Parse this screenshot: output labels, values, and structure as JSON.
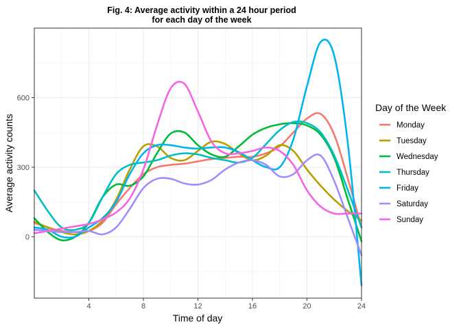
{
  "chart_data": {
    "type": "line",
    "title_line1": "Fig. 4: Average activity within a 24 hour period",
    "title_line2": "for each day of the week",
    "xlabel": "Time of day",
    "ylabel": "Average activity counts",
    "xlim": [
      0,
      24
    ],
    "ylim": [
      -265,
      900
    ],
    "x_ticks": [
      4,
      8,
      12,
      16,
      20,
      24
    ],
    "y_ticks": [
      0,
      300,
      600
    ],
    "grid": true,
    "legend_title": "Day of the Week",
    "legend_position": "right",
    "series": [
      {
        "name": "Monday",
        "color": "#F8766D",
        "x": [
          0,
          1,
          2,
          3,
          4,
          5,
          6,
          7,
          8,
          9,
          10,
          11,
          12,
          13,
          14,
          15,
          16,
          17,
          18,
          19,
          20,
          21,
          22,
          23,
          24
        ],
        "y": [
          60,
          40,
          25,
          20,
          25,
          60,
          140,
          210,
          270,
          300,
          310,
          315,
          325,
          335,
          340,
          345,
          345,
          360,
          390,
          450,
          510,
          530,
          440,
          250,
          40
        ]
      },
      {
        "name": "Tuesday",
        "color": "#B79F00",
        "x": [
          0,
          1,
          2,
          3,
          4,
          5,
          6,
          7,
          8,
          9,
          10,
          11,
          12,
          13,
          14,
          15,
          16,
          17,
          18,
          19,
          20,
          21,
          22,
          23,
          24
        ],
        "y": [
          65,
          40,
          20,
          10,
          25,
          70,
          160,
          290,
          390,
          390,
          340,
          330,
          370,
          410,
          400,
          360,
          330,
          350,
          395,
          370,
          290,
          220,
          160,
          110,
          70
        ]
      },
      {
        "name": "Wednesday",
        "color": "#00BA38",
        "x": [
          0,
          1,
          2,
          3,
          4,
          5,
          6,
          7,
          8,
          9,
          10,
          11,
          12,
          13,
          14,
          15,
          16,
          17,
          18,
          19,
          20,
          21,
          22,
          23,
          24
        ],
        "y": [
          80,
          20,
          -15,
          0,
          60,
          170,
          225,
          220,
          260,
          360,
          445,
          450,
          395,
          355,
          345,
          390,
          440,
          470,
          485,
          490,
          480,
          440,
          340,
          160,
          -20
        ]
      },
      {
        "name": "Thursday",
        "color": "#00BFC4",
        "x": [
          0,
          1,
          2,
          3,
          4,
          5,
          6,
          7,
          8,
          9,
          10,
          11,
          12,
          13,
          14,
          15,
          16,
          17,
          18,
          19,
          20,
          21,
          22,
          23,
          24
        ],
        "y": [
          200,
          110,
          40,
          30,
          60,
          170,
          270,
          310,
          320,
          330,
          350,
          360,
          355,
          340,
          330,
          320,
          340,
          400,
          460,
          495,
          490,
          450,
          350,
          200,
          40
        ]
      },
      {
        "name": "Friday",
        "color": "#00B4EF",
        "x": [
          0,
          1,
          2,
          3,
          4,
          5,
          6,
          7,
          8,
          9,
          10,
          11,
          12,
          13,
          14,
          15,
          16,
          17,
          18,
          19,
          20,
          21,
          22,
          23,
          24
        ],
        "y": [
          40,
          30,
          0,
          0,
          40,
          80,
          150,
          270,
          360,
          395,
          395,
          385,
          380,
          385,
          385,
          365,
          330,
          300,
          300,
          420,
          650,
          840,
          780,
          400,
          -210
        ]
      },
      {
        "name": "Saturday",
        "color": "#9F8CFF",
        "x": [
          0,
          1,
          2,
          3,
          4,
          5,
          6,
          7,
          8,
          9,
          10,
          11,
          12,
          13,
          14,
          15,
          16,
          17,
          18,
          19,
          20,
          21,
          22,
          23,
          24
        ],
        "y": [
          30,
          25,
          20,
          20,
          25,
          10,
          40,
          120,
          210,
          250,
          250,
          230,
          225,
          245,
          290,
          320,
          330,
          310,
          260,
          270,
          330,
          350,
          240,
          80,
          -80
        ]
      },
      {
        "name": "Sunday",
        "color": "#F564E3",
        "x": [
          0,
          1,
          2,
          3,
          4,
          5,
          6,
          7,
          8,
          9,
          10,
          11,
          12,
          13,
          14,
          15,
          16,
          17,
          18,
          19,
          20,
          21,
          22,
          23,
          24
        ],
        "y": [
          15,
          25,
          35,
          45,
          55,
          75,
          105,
          165,
          290,
          480,
          640,
          660,
          540,
          410,
          360,
          360,
          370,
          385,
          370,
          310,
          200,
          130,
          100,
          100,
          100
        ]
      }
    ]
  }
}
